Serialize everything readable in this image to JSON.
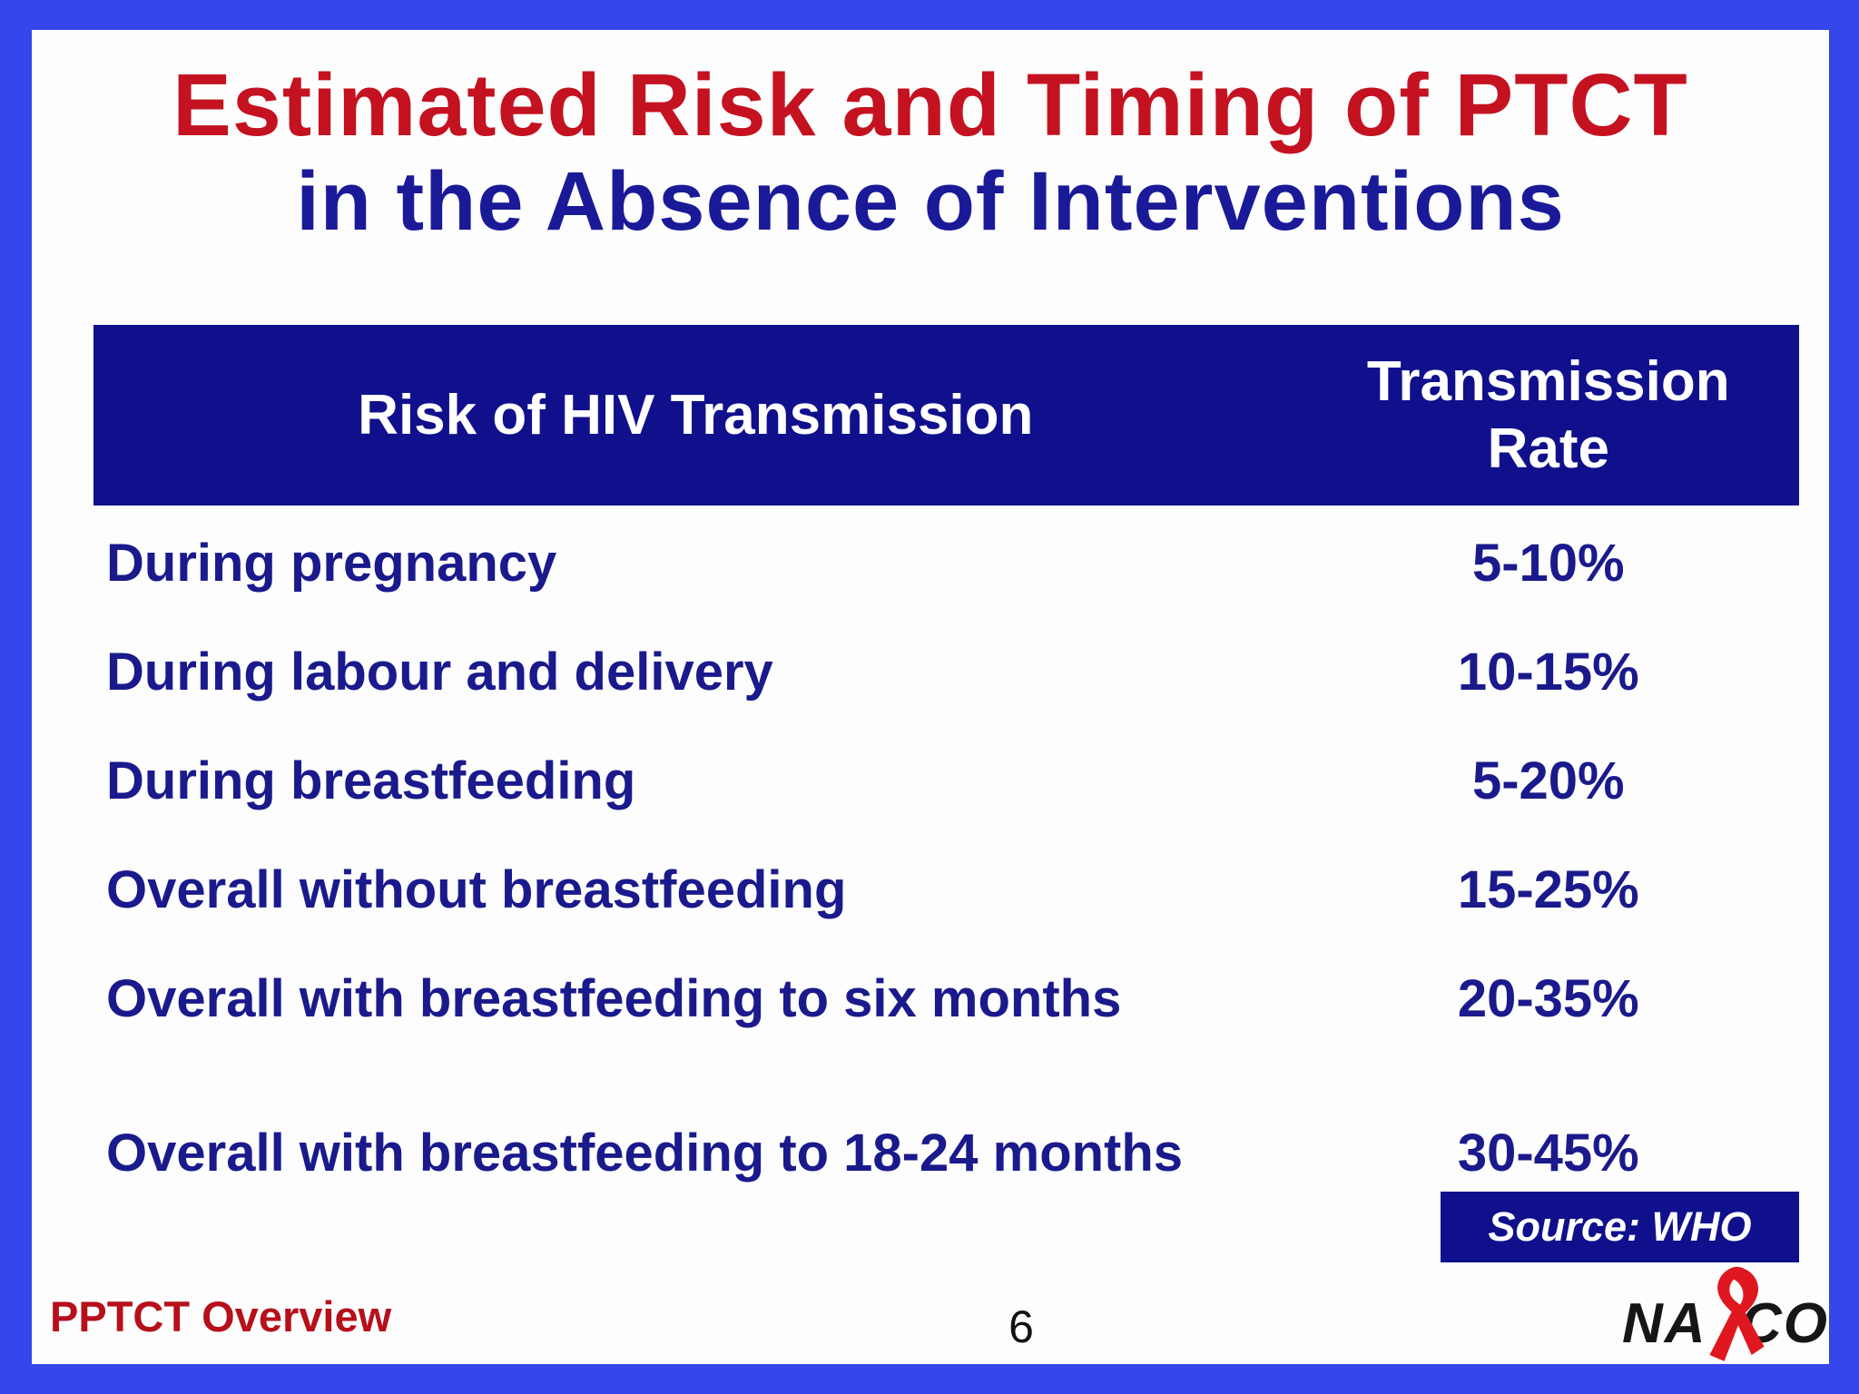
{
  "slide": {
    "title_line1": "Estimated Risk and Timing of PTCT",
    "title_line2": "in the Absence of Interventions",
    "table": {
      "col1_header": "Risk of HIV Transmission",
      "col2_header_line1": "Transmission",
      "col2_header_line2": "Rate",
      "rows": [
        {
          "label": "During pregnancy",
          "value": "5-10%"
        },
        {
          "label": "During labour and delivery",
          "value": "10-15%"
        },
        {
          "label": "During breastfeeding",
          "value": "5-20%"
        },
        {
          "label": "Overall without breastfeeding",
          "value": "15-25%"
        },
        {
          "label": "Overall with breastfeeding to six months",
          "value": "20-35%"
        },
        {
          "label": "Overall with breastfeeding to 18-24 months",
          "value": "30-45%"
        }
      ]
    },
    "source_label": "Source: WHO",
    "footer_left": "PPTCT Overview",
    "page_number": "6",
    "logo": {
      "text_left": "NA",
      "text_right": "CO"
    }
  },
  "colors": {
    "border_blue": "#3546EC",
    "navy": "#10108C",
    "title_red": "#C41220",
    "text_navy": "#1A1A8C",
    "title_navy": "#1A1A99",
    "footer_red": "#B6101B",
    "ribbon_red": "#DF1820",
    "logo_black": "#161616",
    "page_number_black": "#111111",
    "slide_white": "#FDFDFE"
  }
}
